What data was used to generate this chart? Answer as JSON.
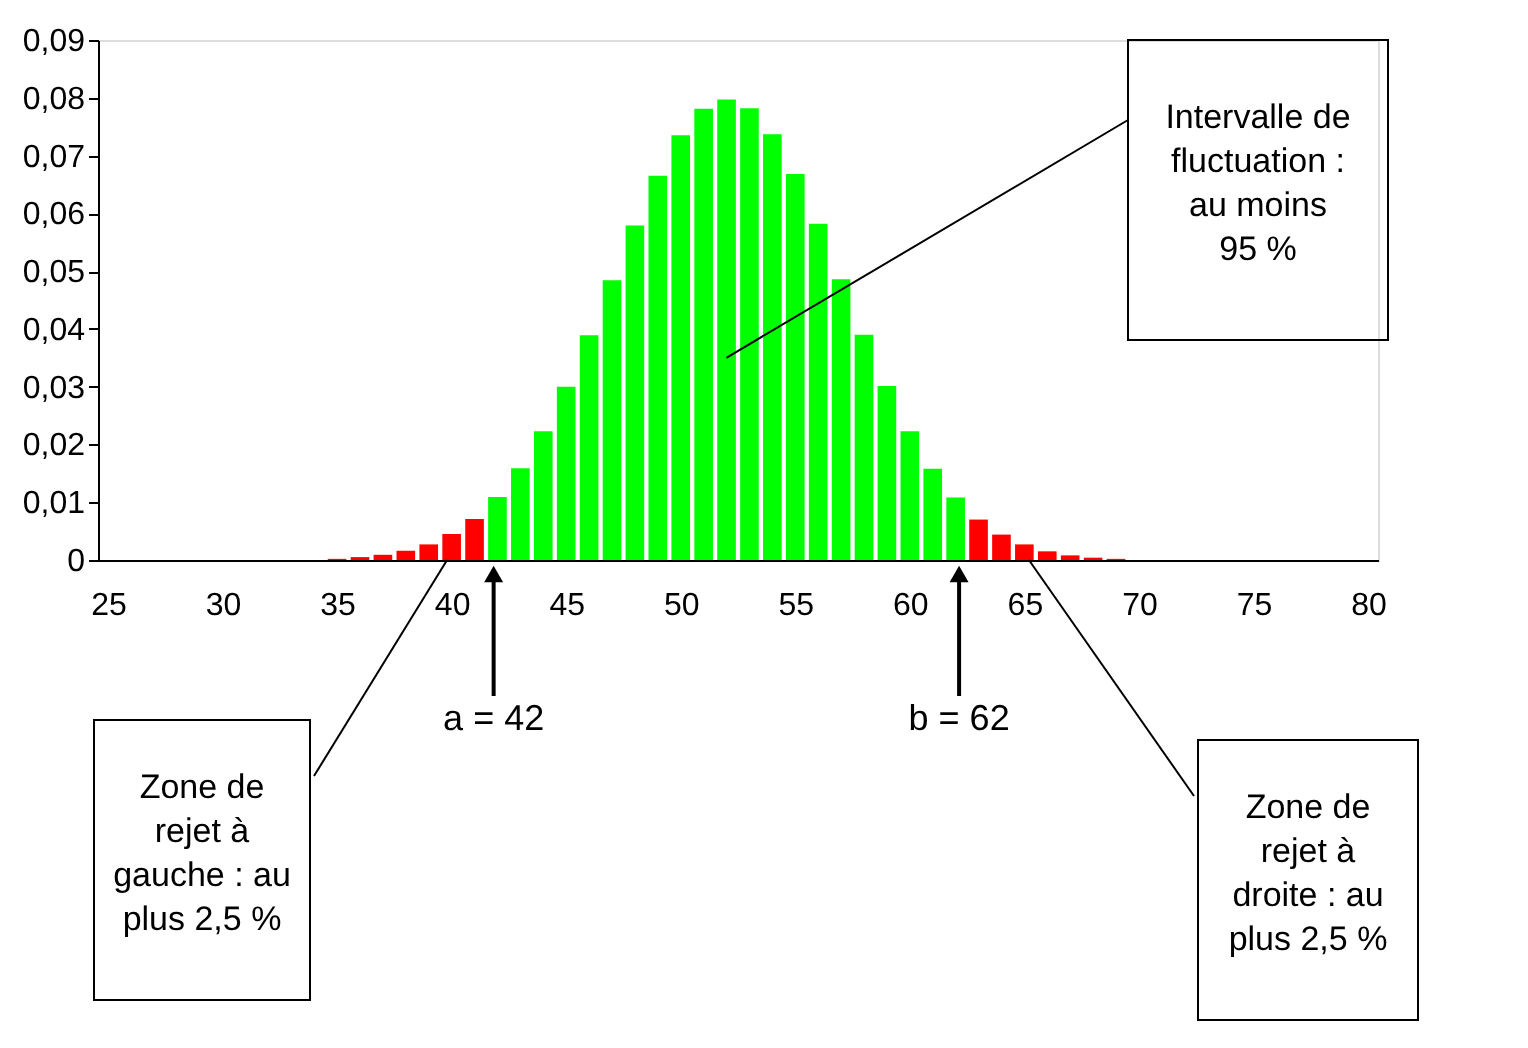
{
  "chart_data": {
    "type": "bar",
    "x": [
      35,
      36,
      37,
      38,
      39,
      40,
      41,
      42,
      43,
      44,
      45,
      46,
      47,
      48,
      49,
      50,
      51,
      52,
      53,
      54,
      55,
      56,
      57,
      58,
      59,
      60,
      61,
      62,
      63,
      64,
      65,
      66,
      67,
      68,
      69
    ],
    "values": [
      0.0002,
      0.0005,
      0.0009,
      0.0016,
      0.0027,
      0.0045,
      0.0071,
      0.0109,
      0.0159,
      0.0223,
      0.03,
      0.0389,
      0.0484,
      0.0579,
      0.0665,
      0.0735,
      0.0781,
      0.0797,
      0.0782,
      0.0737,
      0.0668,
      0.0582,
      0.0486,
      0.039,
      0.0301,
      0.0223,
      0.0158,
      0.0108,
      0.007,
      0.0044,
      0.0027,
      0.0015,
      0.0008,
      0.0004,
      0.0002
    ],
    "colors": [
      "#ff0000",
      "#ff0000",
      "#ff0000",
      "#ff0000",
      "#ff0000",
      "#ff0000",
      "#ff0000",
      "#00ff00",
      "#00ff00",
      "#00ff00",
      "#00ff00",
      "#00ff00",
      "#00ff00",
      "#00ff00",
      "#00ff00",
      "#00ff00",
      "#00ff00",
      "#00ff00",
      "#00ff00",
      "#00ff00",
      "#00ff00",
      "#00ff00",
      "#00ff00",
      "#00ff00",
      "#00ff00",
      "#00ff00",
      "#00ff00",
      "#00ff00",
      "#ff0000",
      "#ff0000",
      "#ff0000",
      "#ff0000",
      "#ff0000",
      "#ff0000",
      "#ff0000"
    ],
    "xlim": [
      25,
      80
    ],
    "xticks": [
      25,
      30,
      35,
      40,
      45,
      50,
      55,
      60,
      65,
      70,
      75,
      80
    ],
    "ylim": [
      0,
      0.09
    ],
    "yticks": [
      {
        "value": 0,
        "label": "0"
      },
      {
        "value": 0.01,
        "label": "0,01"
      },
      {
        "value": 0.02,
        "label": "0,02"
      },
      {
        "value": 0.03,
        "label": "0,03"
      },
      {
        "value": 0.04,
        "label": "0,04"
      },
      {
        "value": 0.05,
        "label": "0,05"
      },
      {
        "value": 0.06,
        "label": "0,06"
      },
      {
        "value": 0.07,
        "label": "0,07"
      },
      {
        "value": 0.08,
        "label": "0,08"
      },
      {
        "value": 0.09,
        "label": "0,09"
      }
    ],
    "grid": false,
    "annotations": [
      {
        "text": "Intervalle de\nfluctuation :\nau moins\n95 %",
        "x": 52,
        "y": 0.035
      },
      {
        "text": "a = 42",
        "x": 42,
        "y": 0
      },
      {
        "text": "b = 62",
        "x": 62,
        "y": 0
      },
      {
        "text": "Zone de\nrejet à\ngauche : au\nplus 2,5 %",
        "x": 40,
        "y": 0
      },
      {
        "text": "Zone de\nrejet à\ndroite : au\nplus 2,5 %",
        "x": 65,
        "y": 0
      }
    ]
  }
}
